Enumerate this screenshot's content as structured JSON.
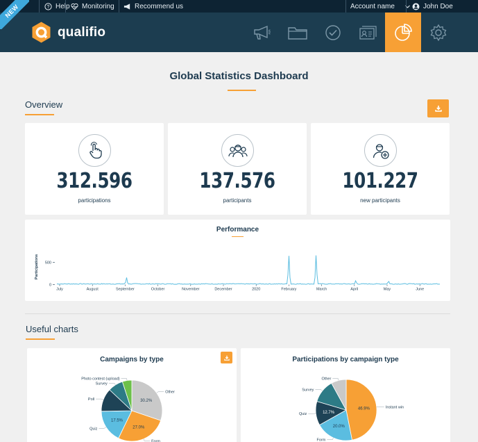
{
  "topbar": {
    "badge": "NEW",
    "help": "Help",
    "monitoring": "Monitoring",
    "recommend": "Recommend us",
    "account": "Account name",
    "user": "John Doe"
  },
  "header": {
    "logo_text": "qualifio",
    "nav": [
      {
        "name": "megaphone-icon",
        "active": false
      },
      {
        "name": "folder-icon",
        "active": false
      },
      {
        "name": "check-circle-icon",
        "active": false
      },
      {
        "name": "contacts-icon",
        "active": false
      },
      {
        "name": "pie-chart-icon",
        "active": true
      },
      {
        "name": "gear-icon",
        "active": false
      }
    ]
  },
  "page": {
    "title": "Global Statistics Dashboard"
  },
  "overview": {
    "title": "Overview",
    "stats": [
      {
        "value": "312.596",
        "label": "participations",
        "icon": "tap-hand-icon"
      },
      {
        "value": "137.576",
        "label": "participants",
        "icon": "group-users-icon"
      },
      {
        "value": "101.227",
        "label": "new participants",
        "icon": "add-user-icon"
      }
    ]
  },
  "performance": {
    "title": "Performance",
    "ylabel": "Participations",
    "yticks": [
      "500",
      "0"
    ],
    "months": [
      "July",
      "August",
      "September",
      "October",
      "November",
      "December",
      "2020",
      "February",
      "March",
      "April",
      "May",
      "June"
    ]
  },
  "useful_charts": {
    "title": "Useful charts"
  },
  "colors": {
    "accent": "#f7a035",
    "navy": "#1c3d50",
    "topbar": "#0d2333",
    "line": "#5bbde0"
  },
  "chart_data": [
    {
      "type": "line",
      "title": "Performance",
      "ylabel": "Participations",
      "xlabel": "",
      "ylim": [
        0,
        700
      ],
      "categories": [
        "July",
        "August",
        "September",
        "October",
        "November",
        "December",
        "2020",
        "February",
        "March",
        "April",
        "May",
        "June"
      ],
      "series": [
        {
          "name": "Participations",
          "peaks": [
            {
              "month": "September",
              "value": 160
            },
            {
              "month": "February",
              "value": 650
            },
            {
              "month": "March",
              "value": 660
            },
            {
              "month": "April",
              "value": 90
            },
            {
              "month": "May",
              "value": 80
            }
          ]
        }
      ]
    },
    {
      "type": "pie",
      "title": "Campaigns by type",
      "labels": [
        "Other",
        "Form",
        "Quiz",
        "Poll",
        "Survey",
        "Photo contest (upload)"
      ],
      "values": [
        30.2,
        27.0,
        17.5,
        12.3,
        8.0,
        5.0
      ],
      "value_labels": [
        "30.2%",
        "27.0%",
        "17.5%",
        "",
        "",
        ""
      ],
      "colors": [
        "#c9c9c9",
        "#f7a035",
        "#5bbde0",
        "#1e4356",
        "#2d7b86",
        "#6cc04a"
      ]
    },
    {
      "type": "pie",
      "title": "Participations by campaign type",
      "labels": [
        "Instant win",
        "Form",
        "Quiz",
        "Survey",
        "Other"
      ],
      "values": [
        46.9,
        20.0,
        12.7,
        12.4,
        8.0
      ],
      "value_labels": [
        "46.9%",
        "20.0%",
        "12.7%",
        "",
        ""
      ],
      "colors": [
        "#f7a035",
        "#5bbde0",
        "#1e4356",
        "#2d7b86",
        "#c9c9c9"
      ]
    }
  ]
}
